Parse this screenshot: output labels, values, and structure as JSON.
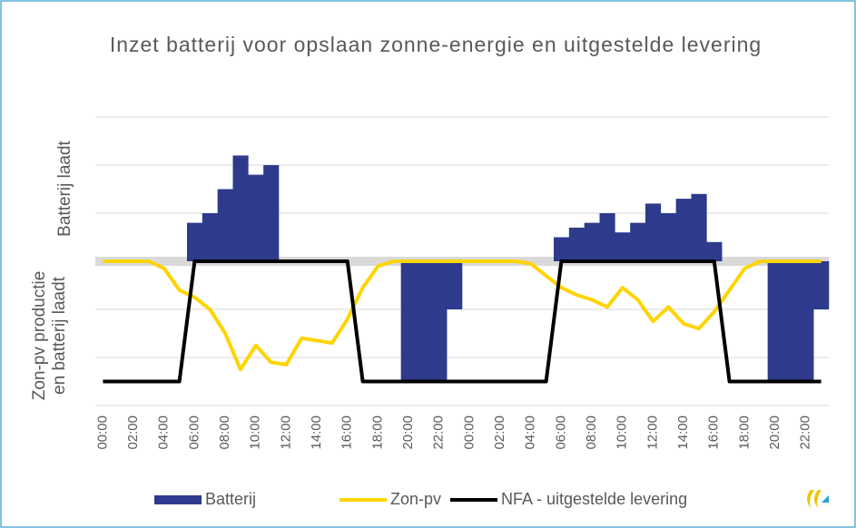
{
  "chart_data": {
    "type": "bar",
    "title": "Inzet batterij voor opslaan zonne-energie en uitgestelde levering",
    "y_labels": {
      "upper": "Batterij laadt",
      "lower": [
        "Zon-pv productie",
        "en batterij laadt"
      ]
    },
    "categories": [
      "00:00",
      null,
      "02:00",
      null,
      "04:00",
      null,
      "06:00",
      null,
      "08:00",
      null,
      "10:00",
      null,
      "12:00",
      null,
      "14:00",
      null,
      "16:00",
      null,
      "18:00",
      null,
      "20:00",
      null,
      "22:00",
      null,
      "00:00",
      null,
      "02:00",
      null,
      "04:00",
      null,
      "06:00",
      null,
      "08:00",
      null,
      "10:00",
      null,
      "12:00",
      null,
      "14:00",
      null,
      "16:00",
      null,
      "18:00",
      null,
      "20:00",
      null,
      "22:00",
      null
    ],
    "ylim": [
      -3,
      3
    ],
    "yticks": [
      -3,
      -2,
      -1,
      0,
      1,
      2,
      3
    ],
    "grid": true,
    "legend": "bottom",
    "series": [
      {
        "name": "Batterij",
        "type": "bar",
        "color": "#2e3a8c",
        "values": [
          0,
          0,
          0,
          0,
          0,
          0,
          0.8,
          1.0,
          1.5,
          2.2,
          1.8,
          2.0,
          0,
          0,
          0,
          0,
          0,
          0,
          0,
          0,
          -2.5,
          -2.5,
          -2.5,
          -1.0,
          0,
          0,
          0,
          0,
          0,
          0,
          0.5,
          0.7,
          0.8,
          1.0,
          0.6,
          0.8,
          1.2,
          1.0,
          1.3,
          1.4,
          0.4,
          0,
          0,
          0,
          -2.5,
          -2.5,
          -2.5,
          -1.0
        ]
      },
      {
        "name": "Zon-pv",
        "type": "line",
        "color": "#ffd400",
        "values": [
          0,
          0,
          0,
          0,
          -0.15,
          -0.6,
          -0.75,
          -1.0,
          -1.5,
          -2.25,
          -1.75,
          -2.1,
          -2.15,
          -1.6,
          -1.65,
          -1.7,
          -1.2,
          -0.55,
          -0.1,
          0,
          0,
          0,
          0,
          0,
          0,
          0,
          0,
          0,
          -0.05,
          -0.3,
          -0.55,
          -0.7,
          -0.8,
          -0.95,
          -0.55,
          -0.8,
          -1.25,
          -0.95,
          -1.3,
          -1.4,
          -1.05,
          -0.6,
          -0.15,
          0,
          0,
          0,
          0,
          0
        ]
      },
      {
        "name": "NFA - uitgestelde levering",
        "type": "line",
        "color": "#000000",
        "values": [
          -2.5,
          -2.5,
          -2.5,
          -2.5,
          -2.5,
          -2.5,
          0,
          0,
          0,
          0,
          0,
          0,
          0,
          0,
          0,
          0,
          0,
          -2.5,
          -2.5,
          -2.5,
          -2.5,
          -2.5,
          -2.5,
          -2.5,
          -2.5,
          -2.5,
          -2.5,
          -2.5,
          -2.5,
          -2.5,
          0,
          0,
          0,
          0,
          0,
          0,
          0,
          0,
          0,
          0,
          0,
          -2.5,
          -2.5,
          -2.5,
          -2.5,
          -2.5,
          -2.5,
          -2.5
        ]
      }
    ]
  }
}
